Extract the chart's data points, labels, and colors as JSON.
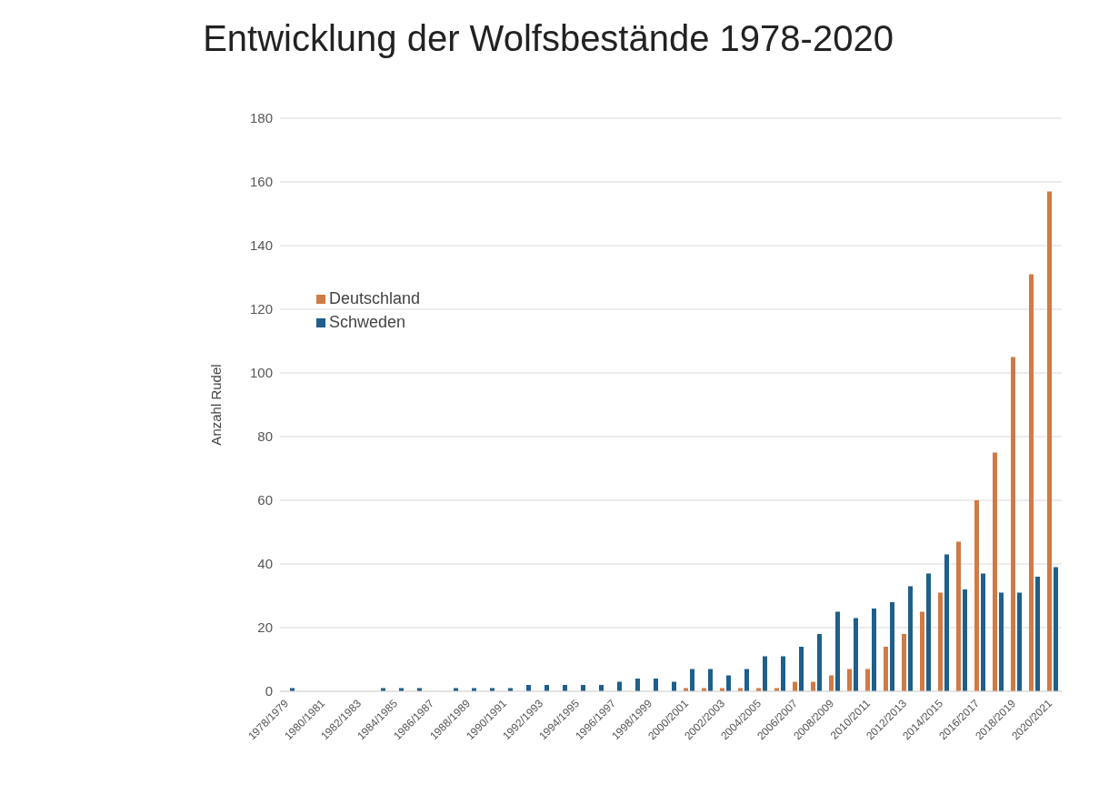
{
  "chart_data": {
    "type": "bar",
    "title": "Entwicklung der Wolfsbestände 1978-2020",
    "ylabel": "Anzahl Rudel",
    "categories": [
      "1978/1979",
      null,
      "1980/1981",
      null,
      "1982/1983",
      null,
      "1984/1985",
      null,
      "1986/1987",
      null,
      "1988/1989",
      null,
      "1990/1991",
      null,
      "1992/1993",
      null,
      "1994/1995",
      null,
      "1996/1997",
      null,
      "1998/1999",
      null,
      "2000/2001",
      null,
      "2002/2003",
      null,
      "2004/2005",
      null,
      "2006/2007",
      null,
      "2008/2009",
      null,
      "2010/2011",
      null,
      "2012/2013",
      null,
      "2014/2015",
      null,
      "2016/2017",
      null,
      "2018/2019",
      null,
      "2020/2021"
    ],
    "series": [
      {
        "name": "Deutschland",
        "color": "#d07a45",
        "values": [
          0,
          0,
          0,
          0,
          0,
          0,
          0,
          0,
          0,
          0,
          0,
          0,
          0,
          0,
          0,
          0,
          0,
          0,
          0,
          0,
          0,
          0,
          1,
          1,
          1,
          1,
          1,
          1,
          3,
          3,
          5,
          7,
          7,
          14,
          18,
          25,
          31,
          47,
          60,
          75,
          105,
          131,
          157
        ]
      },
      {
        "name": "Schweden",
        "color": "#1f5f8b",
        "values": [
          1,
          0,
          0,
          0,
          0,
          1,
          1,
          1,
          0,
          1,
          1,
          1,
          1,
          2,
          2,
          2,
          2,
          2,
          3,
          4,
          4,
          3,
          7,
          7,
          5,
          7,
          11,
          11,
          14,
          18,
          25,
          23,
          26,
          28,
          33,
          37,
          43,
          32,
          37,
          31,
          31,
          36,
          39
        ]
      }
    ],
    "ylim": [
      0,
      180
    ],
    "yticks": [
      0,
      20,
      40,
      60,
      80,
      100,
      120,
      140,
      160,
      180
    ],
    "grid": "y",
    "legend": "top left"
  }
}
